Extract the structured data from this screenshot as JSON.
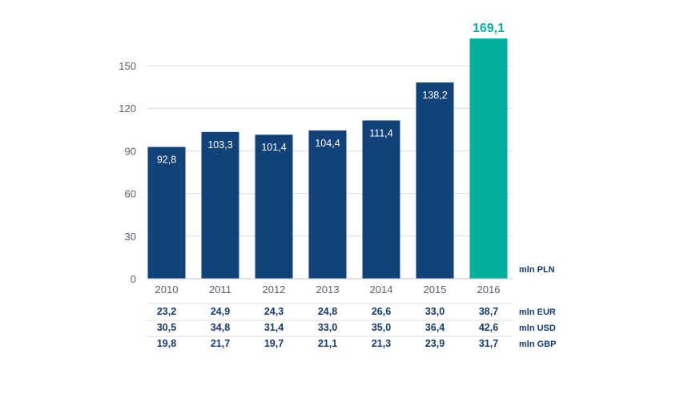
{
  "chart_data": {
    "type": "bar",
    "title": "",
    "xlabel": "",
    "ylabel": "",
    "unit_label": "mln PLN",
    "categories": [
      "2010",
      "2011",
      "2012",
      "2013",
      "2014",
      "2015",
      "2016"
    ],
    "values": [
      92.8,
      103.3,
      101.4,
      104.4,
      111.4,
      138.2,
      169.1
    ],
    "value_labels": [
      "92,8",
      "103,3",
      "101,4",
      "104,4",
      "111,4",
      "138,2",
      "169,1"
    ],
    "highlight_index": 6,
    "ylim": [
      0,
      165
    ],
    "yticks": [
      0,
      30,
      60,
      90,
      120,
      150
    ],
    "grid": true,
    "colors": {
      "bar": "#12427a",
      "highlight": "#00b09b",
      "grid": "#dcdcdc",
      "axis": "#bfc3c8"
    },
    "table": [
      {
        "unit": "mln EUR",
        "values": [
          "23,2",
          "24,9",
          "24,3",
          "24,8",
          "26,6",
          "33,0",
          "38,7"
        ]
      },
      {
        "unit": "mln USD",
        "values": [
          "30,5",
          "34,8",
          "31,4",
          "33,0",
          "35,0",
          "36,4",
          "42,6"
        ]
      },
      {
        "unit": "mln GBP",
        "values": [
          "19,8",
          "21,7",
          "19,7",
          "21,1",
          "21,3",
          "23,9",
          "31,7"
        ]
      }
    ]
  }
}
